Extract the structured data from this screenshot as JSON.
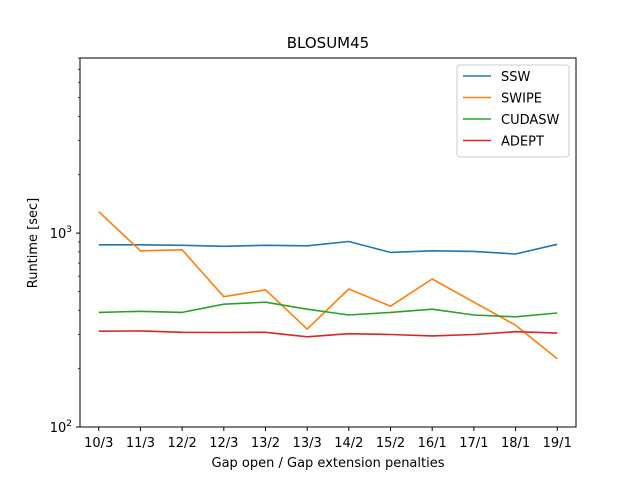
{
  "chart_data": {
    "type": "line",
    "title": "BLOSUM45",
    "xlabel": "Gap open / Gap extension penalties",
    "ylabel": "Runtime [sec]",
    "yscale": "log",
    "ylim": [
      100,
      8000
    ],
    "y_ticks": [
      {
        "value": 100,
        "base": "10",
        "exp": "2"
      },
      {
        "value": 1000,
        "base": "10",
        "exp": "3"
      }
    ],
    "categories": [
      "10/3",
      "11/3",
      "12/2",
      "12/3",
      "13/2",
      "13/3",
      "14/2",
      "15/2",
      "16/1",
      "17/1",
      "18/1",
      "19/1"
    ],
    "legend_position": "top-right",
    "grid": false,
    "series": [
      {
        "name": "SSW",
        "color": "#1f77b4",
        "values": [
          870,
          870,
          865,
          855,
          865,
          860,
          905,
          795,
          810,
          805,
          780,
          875
        ]
      },
      {
        "name": "SWIPE",
        "color": "#ff7f0e",
        "values": [
          1290,
          810,
          820,
          470,
          510,
          320,
          515,
          420,
          580,
          440,
          335,
          225
        ]
      },
      {
        "name": "CUDASW",
        "color": "#2ca02c",
        "values": [
          390,
          395,
          390,
          430,
          440,
          405,
          378,
          390,
          405,
          378,
          370,
          387
        ]
      },
      {
        "name": "ADEPT",
        "color": "#d62728",
        "values": [
          312,
          313,
          308,
          307,
          308,
          292,
          303,
          300,
          295,
          300,
          310,
          305
        ]
      }
    ]
  }
}
